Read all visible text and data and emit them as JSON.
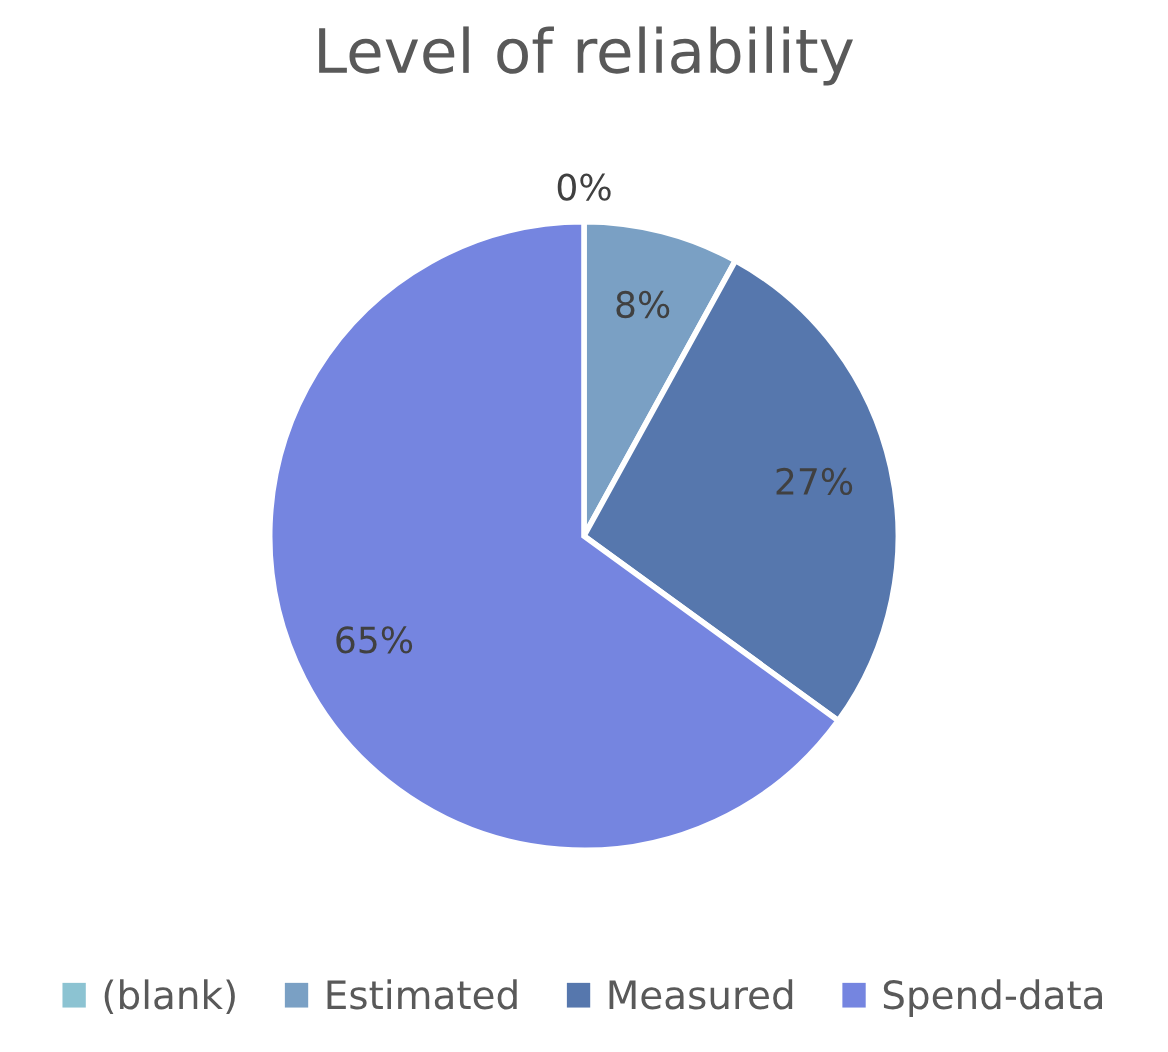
{
  "chart_data": {
    "type": "pie",
    "title": "Level of reliability",
    "categories": [
      "(blank)",
      "Estimated",
      "Measured",
      "Spend-data"
    ],
    "values": [
      0,
      8,
      27,
      65
    ],
    "value_labels": [
      "0%",
      "8%",
      "27%",
      "65%"
    ],
    "colors": [
      "#8cc3d2",
      "#7aa0c4",
      "#5677ad",
      "#7585e0"
    ],
    "legend": "bottom"
  }
}
